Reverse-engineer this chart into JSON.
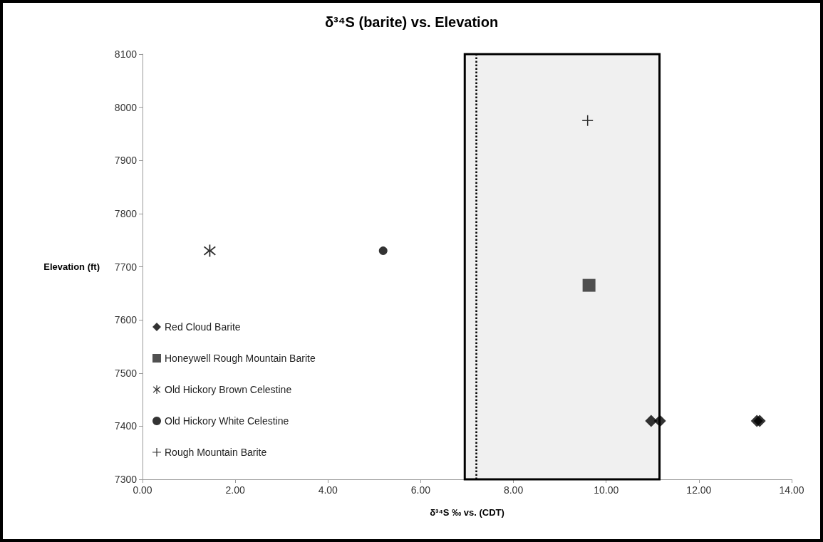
{
  "chart_data": {
    "type": "scatter",
    "title": "δ³⁴S (barite) vs. Elevation",
    "xlabel": "δ³⁴S ‰ vs. (CDT)",
    "ylabel": "Elevation (ft)",
    "series": [
      {
        "name": "Red Cloud Barite",
        "color": "#000000",
        "marker": "diamond",
        "x": [
          10.97,
          11.16,
          13.25,
          13.31
        ],
        "values": [
          7410,
          7410,
          7410,
          7410
        ]
      },
      {
        "name": "Honeywell Rough Mountain Barite",
        "color": "#262626",
        "marker": "square",
        "x": [
          9.63
        ],
        "values": [
          7665
        ]
      },
      {
        "name": "Old Hickory Brown Celestine",
        "color": "#000000",
        "marker": "star",
        "x": [
          1.45
        ],
        "values": [
          7730
        ]
      },
      {
        "name": "Old Hickory White Celestine",
        "color": "#000000",
        "marker": "circle",
        "x": [
          5.19
        ],
        "values": [
          7730
        ]
      },
      {
        "name": "Rough Mountain Barite",
        "color": "#000000",
        "marker": "cross",
        "x": [
          9.6
        ],
        "values": [
          7975
        ]
      }
    ],
    "xlim": [
      0,
      14
    ],
    "xticks": [
      {
        "value": 0,
        "label": "0.00"
      },
      {
        "value": 2,
        "label": "2.00"
      },
      {
        "value": 4,
        "label": "4.00"
      },
      {
        "value": 6,
        "label": "6.00"
      },
      {
        "value": 8,
        "label": "8.00"
      },
      {
        "value": 10,
        "label": "10.00"
      },
      {
        "value": 12,
        "label": "12.00"
      },
      {
        "value": 14,
        "label": "14.00"
      }
    ],
    "ylim": [
      7300,
      8100
    ],
    "yticks": [
      7300,
      7400,
      7500,
      7600,
      7700,
      7800,
      7900,
      8000,
      8100
    ],
    "bands": [
      {
        "axis": "x",
        "from": 6.95,
        "to": 11.15,
        "color": "#f0f0f0"
      }
    ],
    "ref_lines": [
      {
        "axis": "x",
        "value": 7.2,
        "color": "#000000",
        "line_style": "dotted"
      }
    ],
    "grid": false,
    "legend": "bottom left"
  }
}
